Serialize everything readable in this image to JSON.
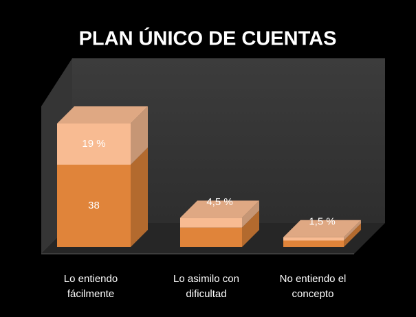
{
  "chart_data": {
    "type": "bar3d_stacked",
    "title": "PLAN ÚNICO DE CUENTAS",
    "categories": [
      "Lo entiendo fácilmente",
      "Lo asimilo con dificultad",
      "No entiendo el concepto"
    ],
    "series": [
      {
        "color": "#e0843a",
        "values": [
          38,
          9,
          3
        ]
      },
      {
        "color": "#f8bb92",
        "values": [
          19,
          4.5,
          1.5
        ],
        "value_labels": [
          "19 %",
          "4,5 %",
          "1,5 %"
        ]
      }
    ]
  }
}
